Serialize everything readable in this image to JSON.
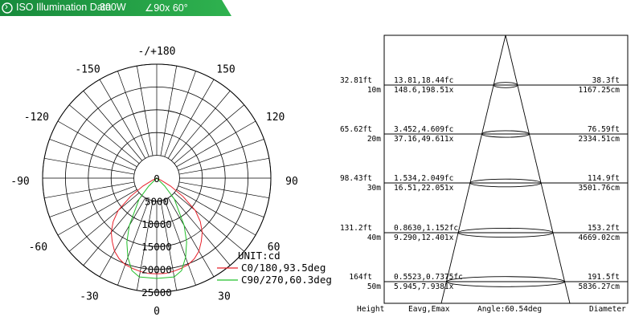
{
  "header": {
    "logo_glyph": "›",
    "title": "ISO Illumination  Data",
    "power": "300W",
    "beam": "∠90x 60°",
    "bar_color": "#22a04a"
  },
  "polar": {
    "angle_labels": [
      "-/+180",
      "-150",
      "150",
      "-120",
      "120",
      "-90",
      "90",
      "-60",
      "60",
      "-30",
      "30",
      "0"
    ],
    "ring_labels": [
      "0",
      "5000",
      "10000",
      "15000",
      "20000",
      "25000"
    ],
    "unit": "UNIT:cd"
  },
  "chart_data": [
    {
      "type": "polar-line",
      "unit": "UNIT:cd",
      "radial_range": [
        0,
        25000
      ],
      "angle_ticks": [
        -180,
        -150,
        -120,
        -90,
        -60,
        -30,
        0,
        30,
        60,
        90,
        120,
        150
      ],
      "series": [
        {
          "name": "C0/180,93.5deg",
          "color": "#e8202a",
          "points": [
            [
              -65,
              1000
            ],
            [
              -60,
              3500
            ],
            [
              -55,
              7000
            ],
            [
              -50,
              11000
            ],
            [
              -45,
              13500
            ],
            [
              -40,
              15500
            ],
            [
              -35,
              17000
            ],
            [
              -30,
              18500
            ],
            [
              -25,
              19500
            ],
            [
              -20,
              20200
            ],
            [
              -15,
              20500
            ],
            [
              -10,
              20800
            ],
            [
              -5,
              21000
            ],
            [
              0,
              21000
            ],
            [
              5,
              21000
            ],
            [
              10,
              20800
            ],
            [
              15,
              20500
            ],
            [
              20,
              20200
            ],
            [
              25,
              19500
            ],
            [
              30,
              18500
            ],
            [
              35,
              17000
            ],
            [
              40,
              15500
            ],
            [
              45,
              13500
            ],
            [
              50,
              11000
            ],
            [
              55,
              7000
            ],
            [
              60,
              3500
            ],
            [
              65,
              1000
            ]
          ]
        },
        {
          "name": "C90/270,60.3deg",
          "color": "#22c02a",
          "points": [
            [
              -45,
              2500
            ],
            [
              -40,
              6000
            ],
            [
              -30,
              12000
            ],
            [
              -25,
              15500
            ],
            [
              -20,
              18500
            ],
            [
              -15,
              21000
            ],
            [
              -10,
              22000
            ],
            [
              0,
              22000
            ],
            [
              10,
              22000
            ],
            [
              15,
              21000
            ],
            [
              20,
              18500
            ],
            [
              25,
              15500
            ],
            [
              30,
              12000
            ],
            [
              40,
              6000
            ],
            [
              45,
              2500
            ]
          ]
        }
      ]
    },
    {
      "type": "table",
      "beam_angle": "Angle:60.54deg",
      "column_headers": [
        "Height",
        "Eavg,Emax",
        "Diameter"
      ],
      "rows": [
        {
          "height_ft": "32.81ft",
          "height_m": "10m",
          "fc": "13.81,18.44fc",
          "lx": "148.6,198.51x",
          "dia_ft": "38.3ft",
          "dia_cm": "1167.25cm"
        },
        {
          "height_ft": "65.62ft",
          "height_m": "20m",
          "fc": "3.452,4.609fc",
          "lx": "37.16,49.611x",
          "dia_ft": "76.59ft",
          "dia_cm": "2334.51cm"
        },
        {
          "height_ft": "98.43ft",
          "height_m": "30m",
          "fc": "1.534,2.049fc",
          "lx": "16.51,22.051x",
          "dia_ft": "114.9ft",
          "dia_cm": "3501.76cm"
        },
        {
          "height_ft": "131.2ft",
          "height_m": "40m",
          "fc": "0.8630,1.152fc",
          "lx": "9.290,12.401x",
          "dia_ft": "153.2ft",
          "dia_cm": "4669.02cm"
        },
        {
          "height_ft": "164ft",
          "height_m": "50m",
          "fc": "0.5523,0.7375fc",
          "lx": "5.945,7.9381x",
          "dia_ft": "191.5ft",
          "dia_cm": "5836.27cm"
        }
      ]
    }
  ]
}
